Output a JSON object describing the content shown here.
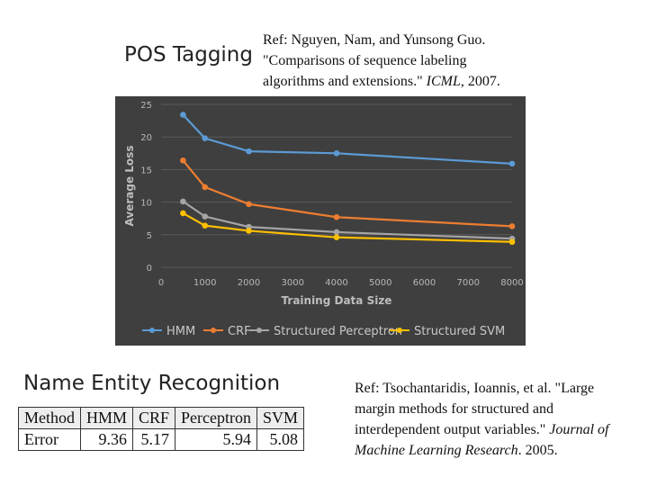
{
  "pos_title": "POS Tagging",
  "ref1": {
    "line1": "Ref: Nguyen, Nam, and Yunsong Guo.",
    "line2": "\"Comparisons of sequence labeling",
    "line3_a": "algorithms and extensions.\" ",
    "line3_venue": "ICML",
    "line3_b": ", 2007."
  },
  "ner_title": "Name Entity Recognition",
  "ref2": {
    "line1": "Ref: Tsochantaridis, Ioannis, et al. \"Large",
    "line2": "margin methods for structured and",
    "line3": "interdependent output variables.\" ",
    "venue": "Journal of Machine Learning Research",
    "tail": ". 2005."
  },
  "table": {
    "header": [
      "Method",
      "HMM",
      "CRF",
      "Perceptron",
      "SVM"
    ],
    "row": [
      "Error",
      "9.36",
      "5.17",
      "5.94",
      "5.08"
    ]
  },
  "chart_data": {
    "type": "line",
    "xlabel": "Training Data Size",
    "ylabel": "Average Loss",
    "xlim": [
      0,
      8000
    ],
    "ylim": [
      0,
      25
    ],
    "xticks": [
      "0",
      "1000",
      "2000",
      "3000",
      "4000",
      "5000",
      "6000",
      "7000",
      "8000"
    ],
    "yticks": [
      "0",
      "5",
      "10",
      "15",
      "20",
      "25"
    ],
    "legend_position": "bottom",
    "x": [
      500,
      1000,
      2000,
      4000,
      8000
    ],
    "series": [
      {
        "name": "HMM",
        "color": "#5b9bd5",
        "values": [
          23.4,
          19.8,
          17.8,
          17.5,
          15.9
        ]
      },
      {
        "name": "CRF",
        "color": "#ed7d31",
        "values": [
          16.4,
          12.3,
          9.7,
          7.7,
          6.3
        ]
      },
      {
        "name": "Structured Perceptron",
        "color": "#a5a5a5",
        "values": [
          10.1,
          7.8,
          6.2,
          5.4,
          4.4
        ]
      },
      {
        "name": "Structured SVM",
        "color": "#ffc000",
        "values": [
          8.3,
          6.4,
          5.6,
          4.6,
          3.9
        ]
      }
    ]
  }
}
